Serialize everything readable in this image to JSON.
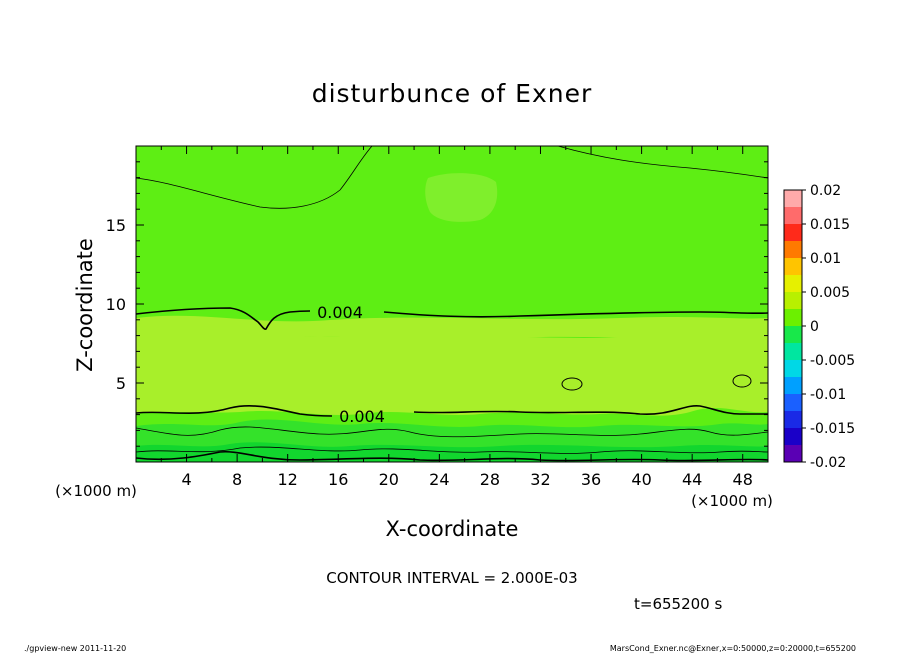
{
  "chart_data": {
    "type": "heatmap",
    "title": "disturbunce of Exner",
    "xlabel": "X-coordinate",
    "ylabel": "Z-coordinate",
    "x_unit": "(×1000 m)",
    "y_unit": "(×1000 m)",
    "xlim": [
      0,
      50
    ],
    "ylim": [
      0,
      20
    ],
    "x_ticks": [
      "4",
      "8",
      "12",
      "16",
      "20",
      "24",
      "28",
      "32",
      "36",
      "40",
      "44",
      "48"
    ],
    "x_tick_values": [
      4,
      8,
      12,
      16,
      20,
      24,
      28,
      32,
      36,
      40,
      44,
      48
    ],
    "y_ticks": [
      "5",
      "10",
      "15"
    ],
    "y_tick_values": [
      5,
      10,
      15
    ],
    "contour_interval": "CONTOUR INTERVAL = 2.000E-03",
    "contour_labels": [
      "0.004",
      "0.004"
    ],
    "colorbar": {
      "labels": [
        "0.02",
        "0.015",
        "0.01",
        "0.005",
        "0",
        "-0.005",
        "-0.01",
        "-0.015",
        "-0.02"
      ],
      "values": [
        0.02,
        0.015,
        0.01,
        0.005,
        0,
        -0.005,
        -0.01,
        -0.015,
        -0.02
      ],
      "colors": [
        "#ffaaaa",
        "#ff6b6b",
        "#ff2a1a",
        "#ff7a00",
        "#ffc400",
        "#e6f000",
        "#b8f000",
        "#6cf000",
        "#18e84a",
        "#00e6a0",
        "#00d8e6",
        "#00a0ff",
        "#1a60ff",
        "#1a2ae6",
        "#1a00c8",
        "#5a00b4"
      ]
    },
    "field_colors": {
      "upper_background": "#5eee14",
      "upper_patch": "#7fef2c",
      "middle_band": "#a8ef2a",
      "low_band": "#34e22a",
      "surface_band": "#12d62e"
    },
    "time": "t=655200 s"
  },
  "footer": {
    "program": "./gpview-new   2011-11-20",
    "source": "MarsCond_Exner.nc@Exner,x=0:50000,z=0:20000,t=655200"
  }
}
